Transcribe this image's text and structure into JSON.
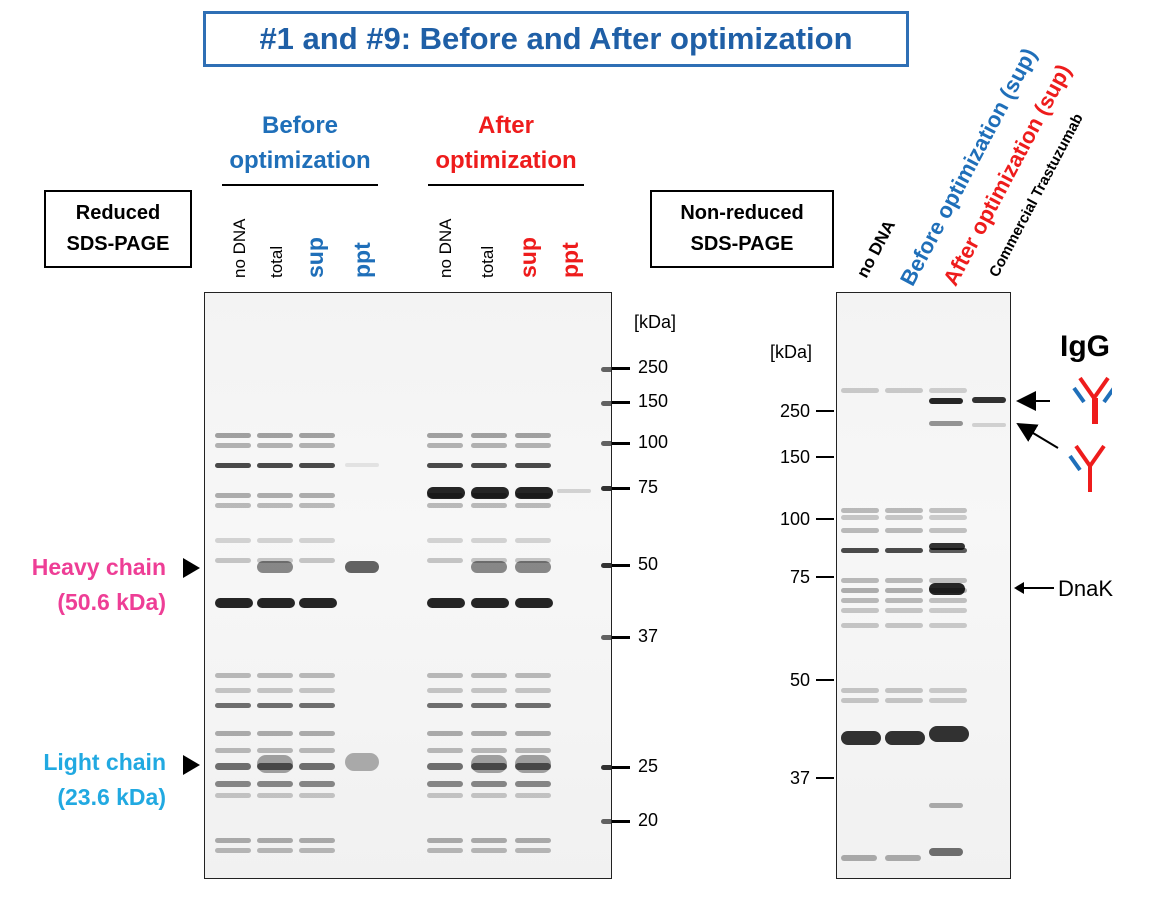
{
  "title": "#1 and #9: Before and After optimization",
  "colors": {
    "blue": "#1f6fb9",
    "red": "#ee1c1c",
    "pink": "#ee3e96",
    "light_blue": "#21a9e1",
    "frame": "#2f6fb5"
  },
  "reduced": {
    "label_line1": "Reduced",
    "label_line2": "SDS-PAGE",
    "before_line1": "Before",
    "before_line2": "optimization",
    "after_line1": "After",
    "after_line2": "optimization",
    "lanes": [
      "no DNA",
      "total",
      "sup",
      "ppt",
      "no DNA",
      "total",
      "sup",
      "ppt"
    ],
    "kda_label": "[kDa]",
    "markers": [
      "250",
      "150",
      "100",
      "75",
      "50",
      "37",
      "25",
      "20"
    ],
    "heavy_chain_line1": "Heavy chain",
    "heavy_chain_line2": "(50.6 kDa)",
    "light_chain_line1": "Light chain",
    "light_chain_line2": "(23.6 kDa)"
  },
  "nonreduced": {
    "label_line1": "Non-reduced",
    "label_line2": "SDS-PAGE",
    "lanes": [
      "no DNA",
      "Before optimization (sup)",
      "After optimization (sup)",
      "Commercial Trastuzumab"
    ],
    "kda_label": "[kDa]",
    "markers": [
      "250",
      "150",
      "100",
      "75",
      "50",
      "37"
    ],
    "igg_label": "IgG",
    "dnak_label": "DnaK",
    "icons": [
      "igg-full-antibody-icon",
      "igg-half-antibody-icon"
    ]
  }
}
